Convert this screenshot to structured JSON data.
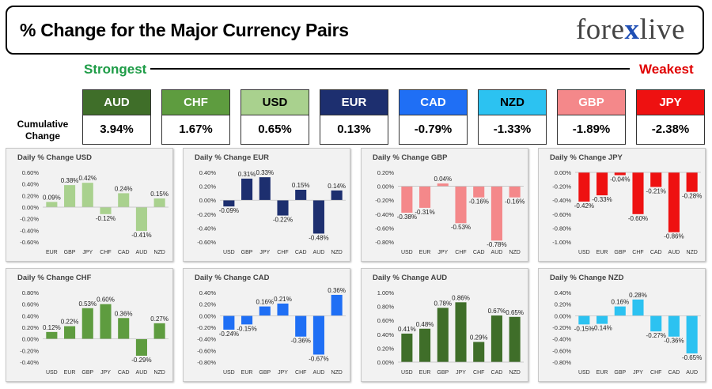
{
  "header": {
    "title": "% Change for the Major Currency Pairs",
    "logo_left": "fore",
    "logo_x": "x",
    "logo_right": "live"
  },
  "strongest_label": "Strongest",
  "weakest_label": "Weakest",
  "cumulative_label": "Cumulative Change",
  "currencies": [
    {
      "code": "AUD",
      "value": "3.94%",
      "color": "#3f6e29",
      "text_color": "#ffffff"
    },
    {
      "code": "CHF",
      "value": "1.67%",
      "color": "#5e9c3f",
      "text_color": "#ffffff"
    },
    {
      "code": "USD",
      "value": "0.65%",
      "color": "#a9d18e",
      "text_color": "#000000"
    },
    {
      "code": "EUR",
      "value": "0.13%",
      "color": "#1d2f6f",
      "text_color": "#ffffff"
    },
    {
      "code": "CAD",
      "value": "-0.79%",
      "color": "#1f6ff5",
      "text_color": "#ffffff"
    },
    {
      "code": "NZD",
      "value": "-1.33%",
      "color": "#2cc2f1",
      "text_color": "#000000"
    },
    {
      "code": "GBP",
      "value": "-1.89%",
      "color": "#f4888a",
      "text_color": "#ffffff"
    },
    {
      "code": "JPY",
      "value": "-2.38%",
      "color": "#ee1111",
      "text_color": "#ffffff"
    }
  ],
  "chart_data": [
    {
      "type": "bar",
      "title": "Daily % Change USD",
      "categories": [
        "EUR",
        "GBP",
        "JPY",
        "CHF",
        "CAD",
        "AUD",
        "NZD"
      ],
      "values": [
        0.09,
        0.38,
        0.42,
        -0.12,
        0.24,
        -0.41,
        0.15
      ],
      "value_labels": [
        "0.09%",
        "0.38%",
        "0.42%",
        "-0.12%",
        "0.24%",
        "-0.41%",
        "0.15%"
      ],
      "ylim": [
        -0.6,
        0.6
      ],
      "ticks": [
        0.6,
        0.4,
        0.2,
        0,
        -0.2,
        -0.4,
        -0.6
      ],
      "tick_labels": [
        "0.60%",
        "0.40%",
        "0.20%",
        "0.00%",
        "-0.20%",
        "-0.40%",
        "-0.60%"
      ],
      "color": "#a9d18e"
    },
    {
      "type": "bar",
      "title": "Daily % Change EUR",
      "categories": [
        "USD",
        "GBP",
        "JPY",
        "CHF",
        "CAD",
        "AUD",
        "NZD"
      ],
      "values": [
        -0.09,
        0.31,
        0.33,
        -0.22,
        0.15,
        -0.48,
        0.14
      ],
      "value_labels": [
        "-0.09%",
        "0.31%",
        "0.33%",
        "-0.22%",
        "0.15%",
        "-0.48%",
        "0.14%"
      ],
      "ylim": [
        -0.6,
        0.4
      ],
      "ticks": [
        0.4,
        0.2,
        0,
        -0.2,
        -0.4,
        -0.6
      ],
      "tick_labels": [
        "0.40%",
        "0.20%",
        "0.00%",
        "-0.20%",
        "-0.40%",
        "-0.60%"
      ],
      "color": "#1d2f6f"
    },
    {
      "type": "bar",
      "title": "Daily % Change GBP",
      "categories": [
        "USD",
        "EUR",
        "JPY",
        "CHF",
        "CAD",
        "AUD",
        "NZD"
      ],
      "values": [
        -0.38,
        -0.31,
        0.04,
        -0.53,
        -0.16,
        -0.78,
        -0.16
      ],
      "value_labels": [
        "-0.38%",
        "-0.31%",
        "0.04%",
        "-0.53%",
        "-0.16%",
        "-0.78%",
        "-0.16%"
      ],
      "ylim": [
        -0.8,
        0.2
      ],
      "ticks": [
        0.2,
        0,
        -0.2,
        -0.4,
        -0.6,
        -0.8
      ],
      "tick_labels": [
        "0.20%",
        "0.00%",
        "-0.20%",
        "-0.40%",
        "-0.60%",
        "-0.80%"
      ],
      "color": "#f4888a"
    },
    {
      "type": "bar",
      "title": "Daily % Change JPY",
      "categories": [
        "USD",
        "EUR",
        "GBP",
        "CHF",
        "CAD",
        "AUD",
        "NZD"
      ],
      "values": [
        -0.42,
        -0.33,
        -0.04,
        -0.6,
        -0.21,
        -0.86,
        -0.28
      ],
      "value_labels": [
        "-0.42%",
        "-0.33%",
        "-0.04%",
        "-0.60%",
        "-0.21%",
        "-0.86%",
        "-0.28%"
      ],
      "ylim": [
        -1.0,
        0
      ],
      "ticks": [
        0,
        -0.2,
        -0.4,
        -0.6,
        -0.8,
        -1.0
      ],
      "tick_labels": [
        "0.00%",
        "-0.20%",
        "-0.40%",
        "-0.60%",
        "-0.80%",
        "-1.00%"
      ],
      "color": "#ee1111"
    },
    {
      "type": "bar",
      "title": "Daily % Change CHF",
      "categories": [
        "USD",
        "EUR",
        "GBP",
        "JPY",
        "CAD",
        "AUD",
        "NZD"
      ],
      "values": [
        0.12,
        0.22,
        0.53,
        0.6,
        0.36,
        -0.29,
        0.27
      ],
      "value_labels": [
        "0.12%",
        "0.22%",
        "0.53%",
        "0.60%",
        "0.36%",
        "-0.29%",
        "0.27%"
      ],
      "ylim": [
        -0.4,
        0.8
      ],
      "ticks": [
        0.8,
        0.6,
        0.4,
        0.2,
        0,
        -0.2,
        -0.4
      ],
      "tick_labels": [
        "0.80%",
        "0.60%",
        "0.40%",
        "0.20%",
        "0.00%",
        "-0.20%",
        "-0.40%"
      ],
      "color": "#5e9c3f"
    },
    {
      "type": "bar",
      "title": "Daily % Change CAD",
      "categories": [
        "USD",
        "EUR",
        "GBP",
        "JPY",
        "CHF",
        "AUD",
        "NZD"
      ],
      "values": [
        -0.24,
        -0.15,
        0.16,
        0.21,
        -0.36,
        -0.67,
        0.36
      ],
      "value_labels": [
        "-0.24%",
        "-0.15%",
        "0.16%",
        "0.21%",
        "-0.36%",
        "-0.67%",
        "0.36%"
      ],
      "ylim": [
        -0.8,
        0.4
      ],
      "ticks": [
        0.4,
        0.2,
        0,
        -0.2,
        -0.4,
        -0.6,
        -0.8
      ],
      "tick_labels": [
        "0.40%",
        "0.20%",
        "0.00%",
        "-0.20%",
        "-0.40%",
        "-0.60%",
        "-0.80%"
      ],
      "color": "#1f6ff5"
    },
    {
      "type": "bar",
      "title": "Daily % Change AUD",
      "categories": [
        "USD",
        "EUR",
        "GBP",
        "JPY",
        "CHF",
        "CAD",
        "NZD"
      ],
      "values": [
        0.41,
        0.48,
        0.78,
        0.86,
        0.29,
        0.67,
        0.65
      ],
      "value_labels": [
        "0.41%",
        "0.48%",
        "0.78%",
        "0.86%",
        "0.29%",
        "0.67%",
        "0.65%"
      ],
      "ylim": [
        0,
        1.0
      ],
      "ticks": [
        1.0,
        0.8,
        0.6,
        0.4,
        0.2,
        0
      ],
      "tick_labels": [
        "1.00%",
        "0.80%",
        "0.60%",
        "0.40%",
        "0.20%",
        "0.00%"
      ],
      "color": "#3f6e29"
    },
    {
      "type": "bar",
      "title": "Daily % Change NZD",
      "categories": [
        "USD",
        "EUR",
        "GBP",
        "JPY",
        "CHF",
        "CAD",
        "AUD"
      ],
      "values": [
        -0.15,
        -0.14,
        0.16,
        0.28,
        -0.27,
        -0.36,
        -0.65
      ],
      "value_labels": [
        "-0.15%",
        "-0.14%",
        "0.16%",
        "0.28%",
        "-0.27%",
        "-0.36%",
        "-0.65%"
      ],
      "ylim": [
        -0.8,
        0.4
      ],
      "ticks": [
        0.4,
        0.2,
        0,
        -0.2,
        -0.4,
        -0.6,
        -0.8
      ],
      "tick_labels": [
        "0.40%",
        "0.20%",
        "0.00%",
        "-0.20%",
        "-0.40%",
        "-0.60%",
        "-0.80%"
      ],
      "color": "#2cc2f1"
    }
  ]
}
